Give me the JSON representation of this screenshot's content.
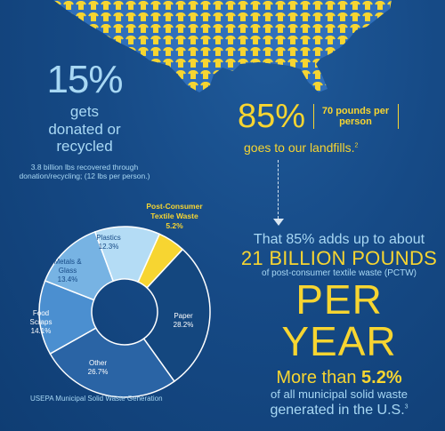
{
  "colors": {
    "background": "#164a86",
    "yellow": "#f7d531",
    "light_blue": "#a8d8f4"
  },
  "header": {
    "map_icon": "usa-map-tshirt-pattern-icon"
  },
  "donated": {
    "percent": "15%",
    "label": "gets donated or recycled",
    "detail": "3.8 billion lbs recovered through donation/recycling; (12 lbs per person.)"
  },
  "landfill": {
    "percent": "85%",
    "note": "70 pounds per person",
    "label": "goes to our landfills.",
    "footnote": "2"
  },
  "totals": {
    "line1": "That 85% adds up to about",
    "line2": "21 BILLION POUNDS",
    "line3": "of post-consumer textile waste (PCTW)",
    "line4": "PER YEAR",
    "line5_prefix": "More than",
    "line5_value": "5.2%",
    "line6": "of all municipal solid waste",
    "line7": "generated in the U.S.",
    "footnote": "3"
  },
  "chart_data": {
    "type": "pie",
    "title": "",
    "caption": "USEPA Municipal Solid Waste Generation",
    "slices": [
      {
        "label": "Post-Consumer Textile Waste",
        "value": 5.2,
        "value_label": "5.2%",
        "color": "#f7d531"
      },
      {
        "label": "Paper",
        "value": 28.2,
        "value_label": "28.2%",
        "color": "#14477f"
      },
      {
        "label": "Other",
        "value": 26.7,
        "value_label": "26.7%",
        "color": "#2a64a5"
      },
      {
        "label": "Food Scraps",
        "value": 14.1,
        "value_label": "14.1%",
        "color": "#4b8fd0"
      },
      {
        "label": "Metals & Glass",
        "value": 13.4,
        "value_label": "13.4%",
        "color": "#77b3e3"
      },
      {
        "label": "Plastics",
        "value": 12.3,
        "value_label": "12.3%",
        "color": "#b4dcf5"
      }
    ]
  }
}
